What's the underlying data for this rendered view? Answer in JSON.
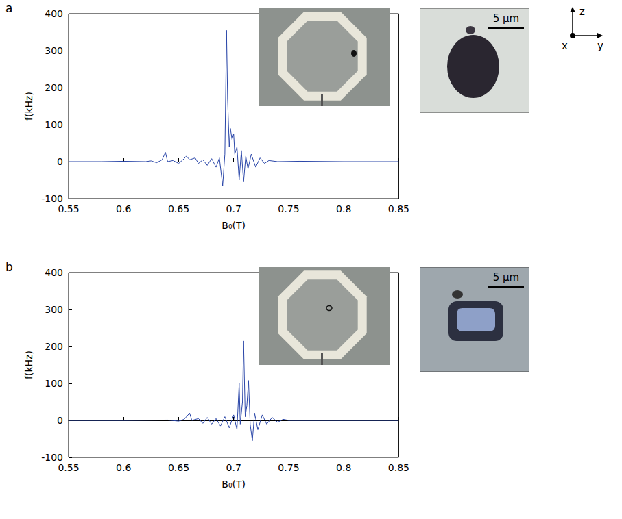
{
  "chart_data": [
    {
      "type": "line",
      "title": "a",
      "xlabel": "B₀(T)",
      "ylabel": "f(kHz)",
      "color": "#2a46a8",
      "xlim": [
        0.55,
        0.85
      ],
      "xticks": [
        0.55,
        0.6,
        0.65,
        0.7,
        0.75,
        0.8,
        0.85
      ],
      "ylim": [
        -100,
        400
      ],
      "yticks": [
        -100,
        0,
        100,
        200,
        300,
        400
      ],
      "grid": false,
      "scale_bar_label": "5 µm",
      "x": [
        0.55,
        0.58,
        0.6,
        0.62,
        0.625,
        0.63,
        0.635,
        0.638,
        0.64,
        0.645,
        0.65,
        0.655,
        0.657,
        0.66,
        0.665,
        0.668,
        0.672,
        0.676,
        0.68,
        0.684,
        0.687,
        0.69,
        0.692,
        0.6935,
        0.6945,
        0.696,
        0.697,
        0.6985,
        0.7,
        0.701,
        0.703,
        0.705,
        0.707,
        0.709,
        0.711,
        0.713,
        0.716,
        0.72,
        0.724,
        0.728,
        0.732,
        0.74,
        0.76,
        0.8,
        0.85
      ],
      "values": [
        0,
        0,
        1,
        0,
        2,
        -3,
        5,
        25,
        0,
        3,
        -5,
        8,
        15,
        5,
        10,
        -5,
        5,
        -10,
        8,
        -15,
        10,
        -65,
        20,
        355,
        170,
        40,
        90,
        60,
        75,
        20,
        40,
        -50,
        30,
        -55,
        15,
        -20,
        20,
        -15,
        10,
        -5,
        3,
        0,
        1,
        0,
        0
      ]
    },
    {
      "type": "line",
      "title": "b",
      "xlabel": "B₀(T)",
      "ylabel": "f(kHz)",
      "color": "#2a46a8",
      "xlim": [
        0.55,
        0.85
      ],
      "xticks": [
        0.55,
        0.6,
        0.65,
        0.7,
        0.75,
        0.8,
        0.85
      ],
      "ylim": [
        -100,
        400
      ],
      "yticks": [
        -100,
        0,
        100,
        200,
        300,
        400
      ],
      "grid": false,
      "scale_bar_label": "5 µm",
      "x": [
        0.55,
        0.6,
        0.64,
        0.65,
        0.655,
        0.66,
        0.662,
        0.668,
        0.672,
        0.676,
        0.68,
        0.684,
        0.688,
        0.692,
        0.696,
        0.7,
        0.703,
        0.705,
        0.706,
        0.708,
        0.709,
        0.7105,
        0.712,
        0.7135,
        0.715,
        0.717,
        0.719,
        0.722,
        0.726,
        0.73,
        0.735,
        0.74,
        0.745,
        0.75,
        0.8,
        0.85
      ],
      "values": [
        0,
        0,
        1,
        -2,
        3,
        20,
        0,
        5,
        -8,
        8,
        -10,
        5,
        -15,
        10,
        -20,
        15,
        -25,
        100,
        -10,
        50,
        215,
        10,
        40,
        108,
        -10,
        -55,
        20,
        -25,
        15,
        -10,
        8,
        -5,
        3,
        0,
        0,
        0
      ]
    }
  ],
  "axes_indicator": {
    "labels": [
      "z",
      "x",
      "y"
    ]
  }
}
